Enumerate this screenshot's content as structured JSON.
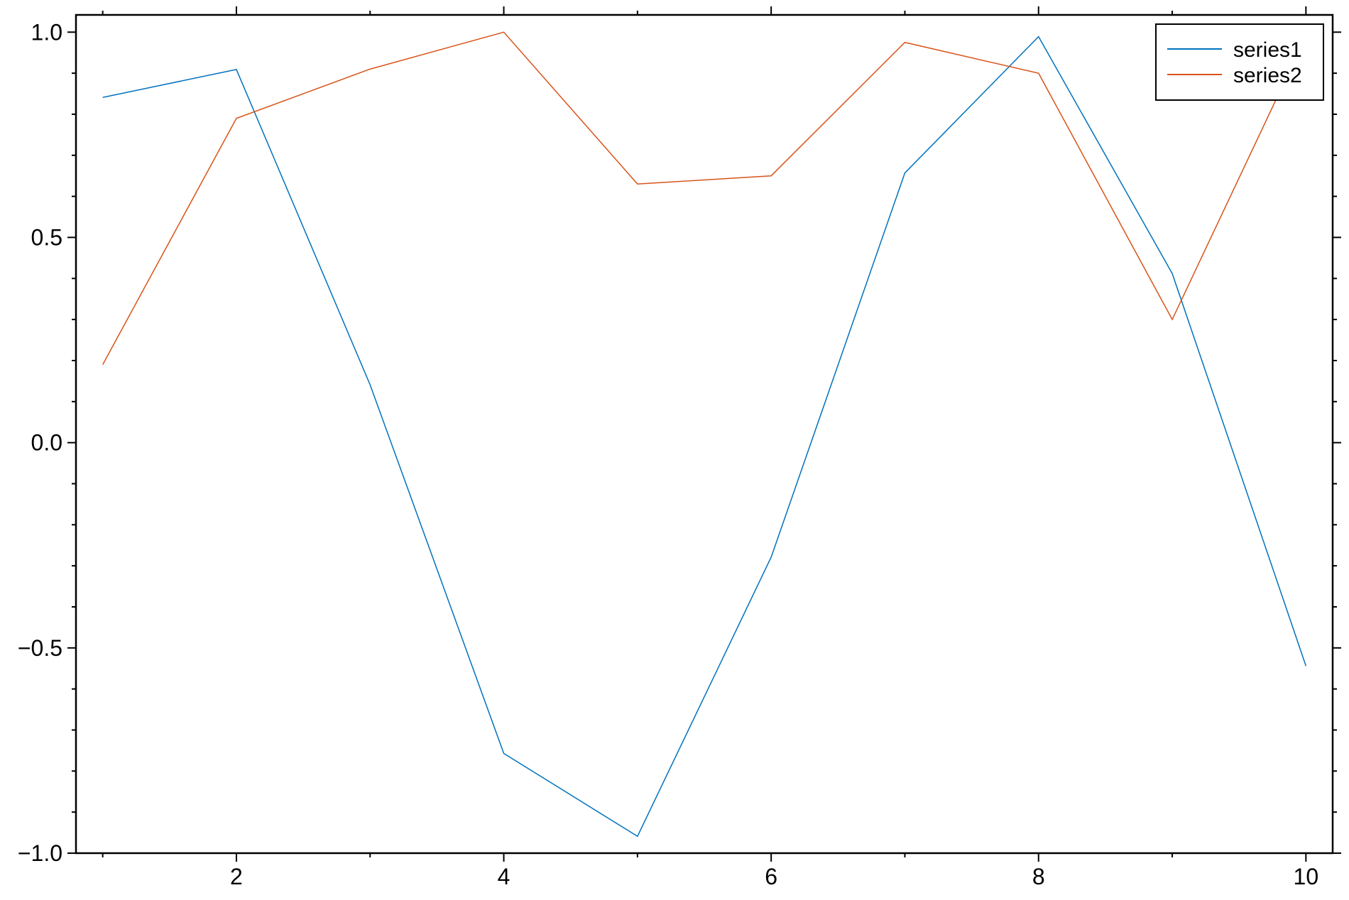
{
  "chart_data": {
    "type": "line",
    "title": "",
    "xlabel": "",
    "ylabel": "",
    "x": [
      1,
      2,
      3,
      4,
      5,
      6,
      7,
      8,
      9,
      10
    ],
    "series": [
      {
        "name": "series1",
        "color": "#0072BD",
        "values": [
          0.841,
          0.909,
          0.141,
          -0.757,
          -0.959,
          -0.279,
          0.657,
          0.989,
          0.412,
          -0.544
        ]
      },
      {
        "name": "series2",
        "color": "#D95319",
        "values": [
          0.19,
          0.79,
          0.91,
          1.0,
          0.63,
          0.65,
          0.975,
          0.9,
          0.3,
          0.99
        ]
      }
    ],
    "xlim": [
      0.8,
      10.2
    ],
    "ylim": [
      -1.0,
      1.042
    ],
    "xticks": [
      2,
      4,
      6,
      8,
      10
    ],
    "xtick_labels": [
      "2",
      "4",
      "6",
      "8",
      "10"
    ],
    "yticks": [
      -1.0,
      -0.5,
      0.0,
      0.5,
      1.0
    ],
    "ytick_labels": [
      "−1.0",
      "−0.5",
      "0.0",
      "0.5",
      "1.0"
    ],
    "grid": false,
    "legend": "top-right"
  }
}
